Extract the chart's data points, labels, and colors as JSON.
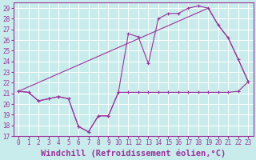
{
  "xlabel": "Windchill (Refroidissement éolien,°C)",
  "bg_color": "#c8ecec",
  "grid_color": "#ffffff",
  "line_color": "#993399",
  "xlim": [
    -0.5,
    23.5
  ],
  "ylim": [
    17,
    29.5
  ],
  "xticks": [
    0,
    1,
    2,
    3,
    4,
    5,
    6,
    7,
    8,
    9,
    10,
    11,
    12,
    13,
    14,
    15,
    16,
    17,
    18,
    19,
    20,
    21,
    22,
    23
  ],
  "yticks": [
    17,
    18,
    19,
    20,
    21,
    22,
    23,
    24,
    25,
    26,
    27,
    28,
    29
  ],
  "line1_x": [
    0,
    1,
    2,
    3,
    4,
    5,
    6,
    7,
    8,
    9,
    10,
    11,
    12,
    13,
    14,
    15,
    16,
    17,
    18,
    19,
    20,
    21,
    22,
    23
  ],
  "line1_y": [
    21.2,
    21.1,
    20.3,
    20.5,
    20.7,
    20.5,
    17.9,
    17.4,
    18.9,
    18.9,
    21.1,
    21.1,
    21.1,
    21.1,
    21.1,
    21.1,
    21.1,
    21.1,
    21.1,
    21.1,
    21.1,
    21.1,
    21.2,
    22.1
  ],
  "line2_x": [
    0,
    1,
    2,
    3,
    4,
    5,
    6,
    7,
    8,
    9,
    10,
    11,
    12,
    13,
    14,
    15,
    16,
    17,
    18,
    19,
    20,
    21,
    22,
    23
  ],
  "line2_y": [
    21.2,
    21.1,
    20.3,
    20.5,
    20.7,
    20.5,
    17.9,
    17.4,
    18.9,
    18.9,
    21.1,
    26.6,
    26.3,
    23.8,
    28.0,
    28.5,
    28.5,
    29.0,
    29.2,
    29.0,
    27.4,
    26.2,
    24.2,
    22.1
  ],
  "line3_x": [
    0,
    19,
    20,
    21,
    22,
    23
  ],
  "line3_y": [
    21.2,
    29.0,
    27.4,
    26.2,
    24.2,
    22.1
  ],
  "tick_fontsize": 5.5,
  "xlabel_fontsize": 7.5
}
